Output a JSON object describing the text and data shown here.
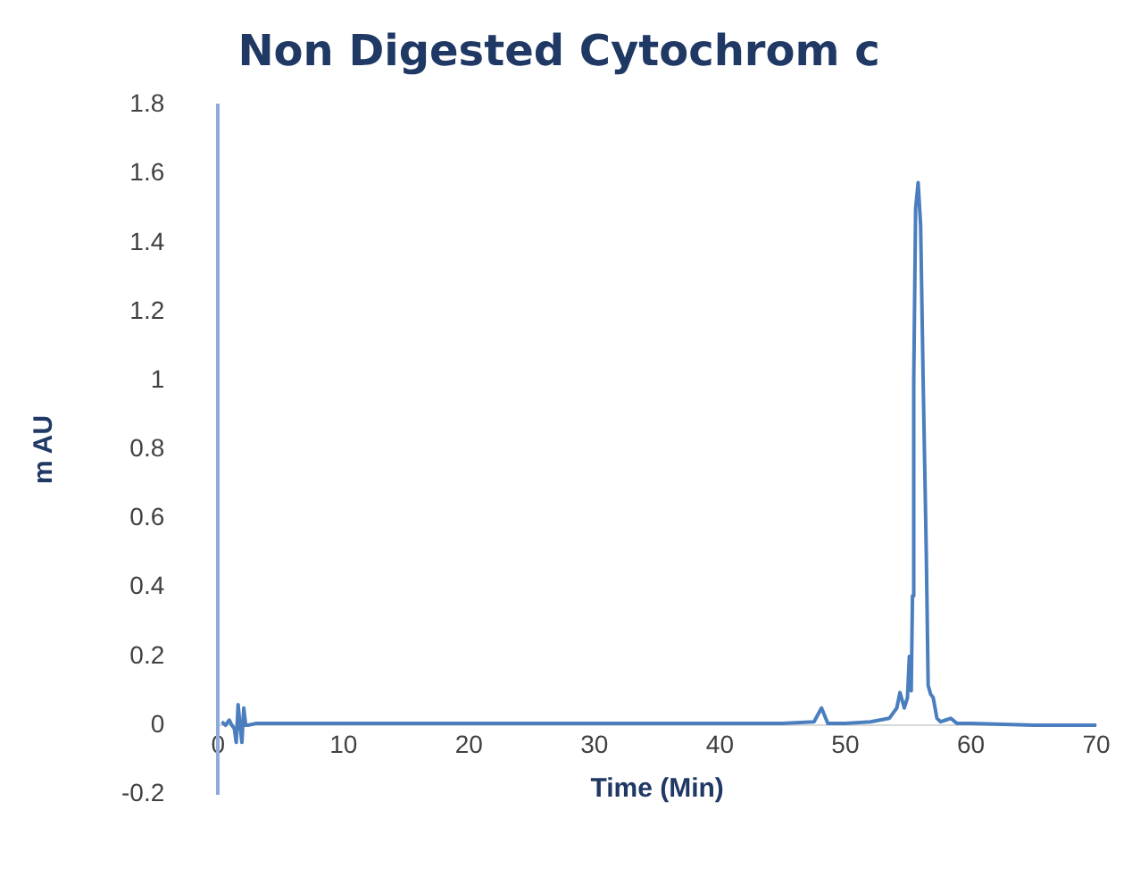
{
  "chart_data": {
    "type": "line",
    "title": "Non Digested Cytochrom c",
    "xlabel": "Time (Min)",
    "ylabel": "m AU",
    "xlim": [
      0,
      70
    ],
    "xticks": [
      0,
      10,
      20,
      30,
      40,
      50,
      60,
      70
    ],
    "ylim": [
      -0.2,
      1.8
    ],
    "yticks": [
      -0.2,
      0,
      0.2,
      0.4,
      0.6,
      0.8,
      1,
      1.2,
      1.4,
      1.6,
      1.8
    ],
    "grid": false,
    "legend": false,
    "marker": "none",
    "line_style": "solid",
    "series": [
      {
        "color": "#4a7ebf",
        "x": [
          0.3,
          0.6,
          0.9,
          1.1,
          1.3,
          1.45,
          1.6,
          1.75,
          1.9,
          2.05,
          2.2,
          2.4,
          3,
          5,
          10,
          20,
          30,
          40,
          45,
          47.5,
          48.1,
          48.6,
          50,
          52,
          53.5,
          54.1,
          54.35,
          54.7,
          54.95,
          55.1,
          55.25,
          55.35,
          55.45,
          55.6,
          55.8,
          56.0,
          56.2,
          56.45,
          56.6,
          56.8,
          57.0,
          57.3,
          57.6,
          58.0,
          58.4,
          58.9,
          60,
          65,
          70
        ],
        "values": [
          0.01,
          0.0,
          0.015,
          0.0,
          -0.01,
          -0.05,
          0.06,
          0.0,
          -0.05,
          0.05,
          0.0,
          0.0,
          0.005,
          0.005,
          0.005,
          0.005,
          0.005,
          0.005,
          0.005,
          0.01,
          0.05,
          0.005,
          0.005,
          0.01,
          0.02,
          0.05,
          0.095,
          0.05,
          0.08,
          0.2,
          0.1,
          0.375,
          1.0,
          1.5,
          1.575,
          1.45,
          1.0,
          0.5,
          0.115,
          0.09,
          0.08,
          0.02,
          0.01,
          0.015,
          0.02,
          0.005,
          0.005,
          0.0,
          0.0
        ]
      }
    ]
  }
}
